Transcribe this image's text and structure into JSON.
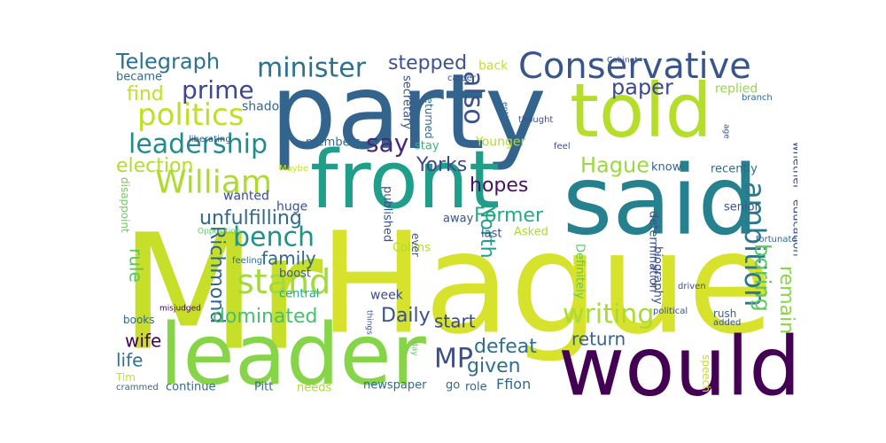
{
  "words": [
    {
      "text": "Mr",
      "color": "#c8df2a"
    },
    {
      "text": "Hague",
      "color": "#d6e22b"
    },
    {
      "text": "party",
      "color": "#32648e"
    },
    {
      "text": "said",
      "color": "#26818e"
    },
    {
      "text": "leader",
      "color": "#86d549"
    },
    {
      "text": "would",
      "color": "#440154"
    },
    {
      "text": "told",
      "color": "#b5de2b"
    },
    {
      "text": "front",
      "color": "#1f9e89"
    },
    {
      "text": "Conservative",
      "color": "#39568c"
    },
    {
      "text": "William",
      "color": "#addc30"
    },
    {
      "text": "stand",
      "color": "#a2da37"
    },
    {
      "text": "minister",
      "color": "#2c728e"
    },
    {
      "text": "politics",
      "color": "#c0df25"
    },
    {
      "text": "leadership",
      "color": "#238a8d"
    },
    {
      "text": "prime",
      "color": "#3f4889"
    },
    {
      "text": "Telegraph",
      "color": "#2c728e"
    },
    {
      "text": "stepped",
      "color": "#3b528b"
    },
    {
      "text": "also",
      "color": "#3b528b"
    },
    {
      "text": "say",
      "color": "#482878"
    },
    {
      "text": "bench",
      "color": "#21918c"
    },
    {
      "text": "writing",
      "color": "#a8db34"
    },
    {
      "text": "ambition",
      "color": "#2a788e"
    },
    {
      "text": "paper",
      "color": "#3e4a89"
    },
    {
      "text": "Hague",
      "color": "#9bd93c"
    },
    {
      "text": "find",
      "color": "#c2df23"
    },
    {
      "text": "election",
      "color": "#b2dd2d"
    },
    {
      "text": "unfulfilling",
      "color": "#31688e"
    },
    {
      "text": "Yorks",
      "color": "#3e4989"
    },
    {
      "text": "hopes",
      "color": "#471164"
    },
    {
      "text": "Former",
      "color": "#25ab82"
    },
    {
      "text": "North",
      "color": "#1fa188"
    },
    {
      "text": "Richmond",
      "color": "#31678e"
    },
    {
      "text": "dominated",
      "color": "#46c06f"
    },
    {
      "text": "Daily",
      "color": "#3b528b"
    },
    {
      "text": "start",
      "color": "#3e4989"
    },
    {
      "text": "defeat",
      "color": "#2e6e8e"
    },
    {
      "text": "return",
      "color": "#33638d"
    },
    {
      "text": "given",
      "color": "#2e6f8e"
    },
    {
      "text": "MP",
      "color": "#3d4e8a"
    },
    {
      "text": "boring",
      "color": "#5ec962"
    },
    {
      "text": "remain",
      "color": "#8bd646"
    },
    {
      "text": "family",
      "color": "#31678e"
    },
    {
      "text": "wife",
      "color": "#440154"
    },
    {
      "text": "life",
      "color": "#2c728e"
    },
    {
      "text": "rule",
      "color": "#56c667"
    },
    {
      "text": "Asked",
      "color": "#addc30"
    },
    {
      "text": "Collins",
      "color": "#addc30"
    },
    {
      "text": "boost",
      "color": "#3b528b"
    },
    {
      "text": "central",
      "color": "#22a884"
    },
    {
      "text": "week",
      "color": "#3e4a89"
    },
    {
      "text": "huge",
      "color": "#3b528b"
    },
    {
      "text": "wanted",
      "color": "#3e4989"
    },
    {
      "text": "know",
      "color": "#33638d"
    },
    {
      "text": "recently",
      "color": "#31688e"
    },
    {
      "text": "senior",
      "color": "#3b528b"
    },
    {
      "text": "whether",
      "color": "#3b528b"
    },
    {
      "text": "education",
      "color": "#3b528b"
    },
    {
      "text": "Younger",
      "color": "#b2dd2d"
    },
    {
      "text": "members",
      "color": "#31688e"
    },
    {
      "text": "secretary",
      "color": "#3b528b"
    },
    {
      "text": "returned",
      "color": "#31688e"
    },
    {
      "text": "stay",
      "color": "#35b779"
    },
    {
      "text": "replied",
      "color": "#95d840"
    },
    {
      "text": "back",
      "color": "#c8e020"
    },
    {
      "text": "career",
      "color": "#3b528b"
    },
    {
      "text": "entire",
      "color": "#31688e"
    },
    {
      "text": "thought",
      "color": "#3b528b"
    },
    {
      "text": "feel",
      "color": "#3b528b"
    },
    {
      "text": "age",
      "color": "#3b528b"
    },
    {
      "text": "branch",
      "color": "#31688e"
    },
    {
      "text": "Cabinet",
      "color": "#3b528b"
    },
    {
      "text": "shadow",
      "color": "#31688e"
    },
    {
      "text": "became",
      "color": "#31688e"
    },
    {
      "text": "liberating",
      "color": "#3b528b"
    },
    {
      "text": "Maybe",
      "color": "#c8e020"
    },
    {
      "text": "Opposition",
      "color": "#5ec962"
    },
    {
      "text": "feeling",
      "color": "#2e6f8e"
    },
    {
      "text": "disappoint",
      "color": "#6ccd5a"
    },
    {
      "text": "misjudged",
      "color": "#440154"
    },
    {
      "text": "books",
      "color": "#31688e"
    },
    {
      "text": "things",
      "color": "#3b528b"
    },
    {
      "text": "Tim",
      "color": "#c8e020"
    },
    {
      "text": "crammed",
      "color": "#31688e"
    },
    {
      "text": "continue",
      "color": "#31688e"
    },
    {
      "text": "Pitt",
      "color": "#31688e"
    },
    {
      "text": "needs",
      "color": "#a8db34"
    },
    {
      "text": "newspaper",
      "color": "#31688e"
    },
    {
      "text": "go",
      "color": "#31688e"
    },
    {
      "text": "role",
      "color": "#31688e"
    },
    {
      "text": "Ffion",
      "color": "#31688e"
    },
    {
      "text": "ever",
      "color": "#3b528b"
    },
    {
      "text": "published",
      "color": "#3b528b"
    },
    {
      "text": "away",
      "color": "#3b528b"
    },
    {
      "text": "last",
      "color": "#3b528b"
    },
    {
      "text": "determination",
      "color": "#3b528b"
    },
    {
      "text": "biography",
      "color": "#3b528b"
    },
    {
      "text": "Definitely",
      "color": "#5ec962"
    },
    {
      "text": "fortunate",
      "color": "#31688e"
    },
    {
      "text": "political",
      "color": "#3b528b"
    },
    {
      "text": "driven",
      "color": "#3b528b"
    },
    {
      "text": "rush",
      "color": "#31688e"
    },
    {
      "text": "added",
      "color": "#3b528b"
    },
    {
      "text": "speech",
      "color": "#c8e020"
    },
    {
      "text": "day",
      "color": "#5ec962"
    }
  ]
}
